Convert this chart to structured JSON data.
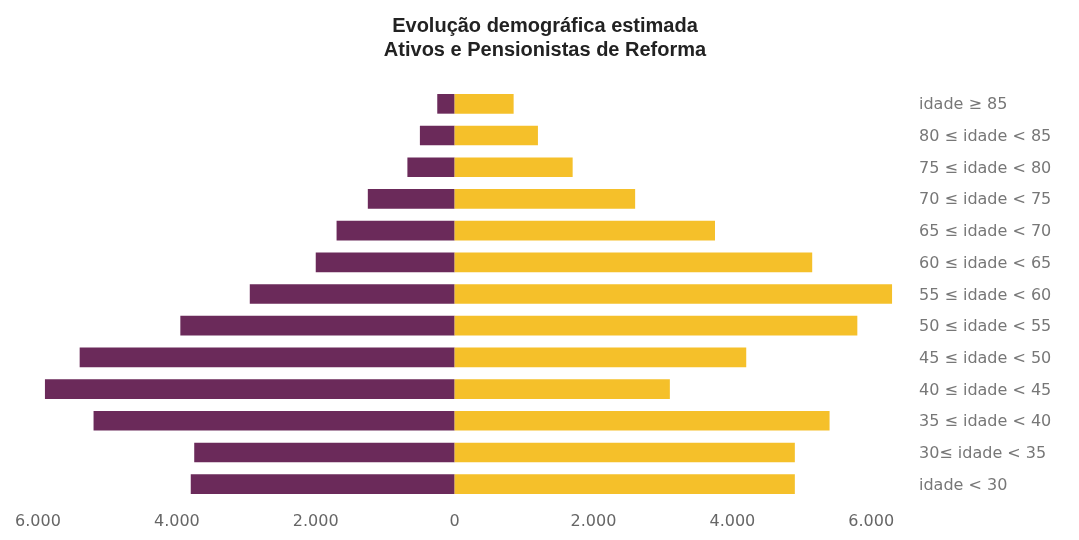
{
  "chart_data": {
    "type": "bar",
    "orientation": "horizontal",
    "stacked": true,
    "title": "Evolução demográfica estimada\nAtivos e Pensionistas de Reforma",
    "categories": [
      "idade ≥ 85",
      "80 ≤ idade < 85",
      "75 ≤ idade < 80",
      "70 ≤ idade < 75",
      "65 ≤ idade < 70",
      "60 ≤ idade < 65",
      "55 ≤ idade < 60",
      "50 ≤ idade < 55",
      "45 ≤ idade < 50",
      "40 ≤ idade < 45",
      "35 ≤ idade < 40",
      "30≤ idade < 35",
      "idade < 30"
    ],
    "series": [
      {
        "color": "#6b2a5a",
        "values": [
          -250,
          -500,
          -680,
          -1250,
          -1700,
          -2000,
          -2950,
          -3950,
          -5400,
          -5900,
          -5200,
          -3750,
          -3800
        ]
      },
      {
        "color": "#f5c02a",
        "values": [
          850,
          1200,
          1700,
          2600,
          3750,
          5150,
          6300,
          5800,
          4200,
          3100,
          5400,
          4900,
          4900
        ]
      }
    ],
    "xlim": [
      -6000,
      6400
    ],
    "xticks": [
      {
        "value": -6000,
        "label": "6.000"
      },
      {
        "value": -4000,
        "label": "4.000"
      },
      {
        "value": -2000,
        "label": "2.000"
      },
      0,
      {
        "value": 2000,
        "label": "2.000"
      },
      {
        "value": 4000,
        "label": "4.000"
      },
      {
        "value": 6000,
        "label": "6.000"
      }
    ],
    "grid": false
  }
}
